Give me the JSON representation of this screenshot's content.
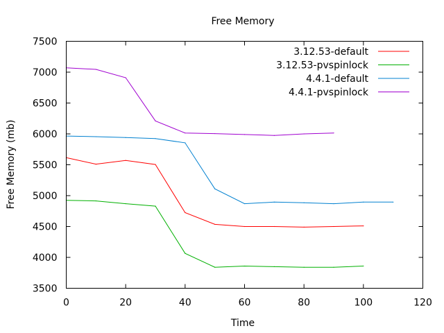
{
  "chart_data": {
    "type": "line",
    "title": "Free Memory",
    "xlabel": "Time",
    "ylabel": "Free Memory (mb)",
    "xlim": [
      0,
      120
    ],
    "ylim": [
      3500,
      7500
    ],
    "xticks": [
      0,
      20,
      40,
      60,
      80,
      100,
      120
    ],
    "yticks": [
      3500,
      4000,
      4500,
      5000,
      5500,
      6000,
      6500,
      7000,
      7500
    ],
    "grid": false,
    "legend_position": "top-right",
    "series": [
      {
        "name": "3.12.53-default",
        "color": "#ff0000",
        "x": [
          0,
          10,
          20,
          30,
          40,
          50,
          60,
          70,
          80,
          90,
          100
        ],
        "y": [
          5615,
          5510,
          5570,
          5505,
          4725,
          4535,
          4500,
          4500,
          4490,
          4500,
          4510
        ]
      },
      {
        "name": "3.12.53-pvspinlock",
        "color": "#00b000",
        "x": [
          0,
          10,
          20,
          30,
          40,
          50,
          60,
          70,
          80,
          90,
          100
        ],
        "y": [
          4925,
          4915,
          4870,
          4830,
          4065,
          3840,
          3860,
          3850,
          3840,
          3840,
          3860
        ]
      },
      {
        "name": "4.4.1-default",
        "color": "#0080d0",
        "x": [
          0,
          10,
          20,
          30,
          40,
          50,
          60,
          70,
          80,
          90,
          100,
          110
        ],
        "y": [
          5965,
          5955,
          5940,
          5925,
          5855,
          5110,
          4870,
          4895,
          4885,
          4870,
          4895,
          4895
        ]
      },
      {
        "name": "4.4.1-pvspinlock",
        "color": "#a000d0",
        "x": [
          0,
          10,
          20,
          30,
          40,
          50,
          60,
          70,
          80,
          90
        ],
        "y": [
          7070,
          7045,
          6910,
          6210,
          6015,
          6005,
          5990,
          5975,
          6000,
          6015
        ]
      }
    ]
  }
}
